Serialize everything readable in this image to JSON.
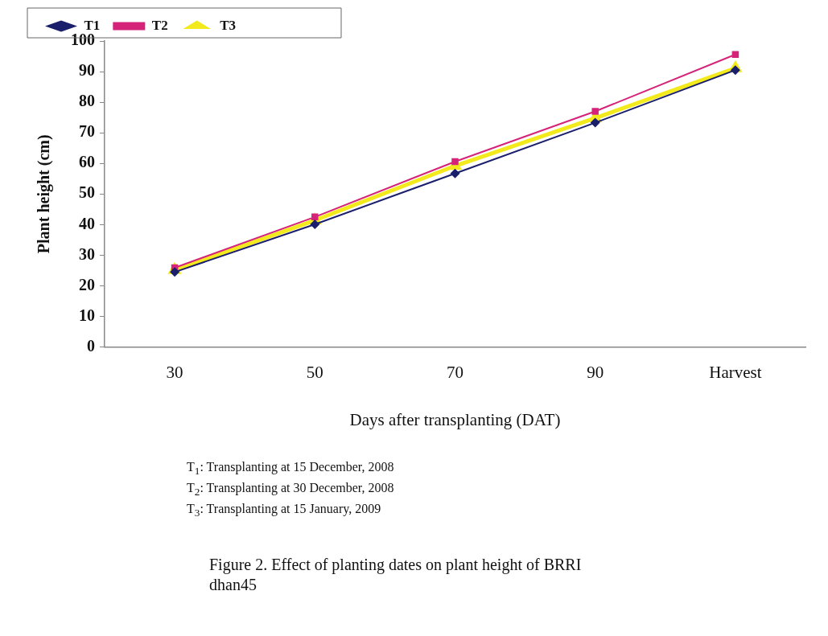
{
  "chart_data": {
    "type": "line",
    "title": "Figure 2. Effect of planting dates on plant height of BRRI dhan45",
    "xlabel": "Days after transplanting (DAT)",
    "ylabel": "Plant height (cm)",
    "categories": [
      "30",
      "50",
      "70",
      "90",
      "Harvest"
    ],
    "series": [
      {
        "name": "T1",
        "color": "#1a1f6b",
        "marker": "diamond",
        "values": [
          24.5,
          40.1,
          56.7,
          73.3,
          90.5
        ]
      },
      {
        "name": "T2",
        "color": "#d6237a",
        "marker": "square",
        "values": [
          25.9,
          42.5,
          60.6,
          77,
          95.6
        ]
      },
      {
        "name": "T3",
        "color": "#f2ea1c",
        "marker": "triangle",
        "values": [
          25.2,
          41.4,
          59.2,
          74.8,
          91.1
        ]
      }
    ],
    "ylim": [
      0,
      100
    ],
    "yticks": [
      0,
      10,
      20,
      30,
      40,
      50,
      60,
      70,
      80,
      90,
      100
    ],
    "grid": false,
    "legend": "top left",
    "line_style": "solid",
    "annotations": [
      "T$_{1}$: Transplanting at 15 December, 2008",
      "T$_{2}$: Transplanting at 30 December, 2008",
      "T$_{3}$: Transplanting at 15 January, 2009"
    ]
  }
}
